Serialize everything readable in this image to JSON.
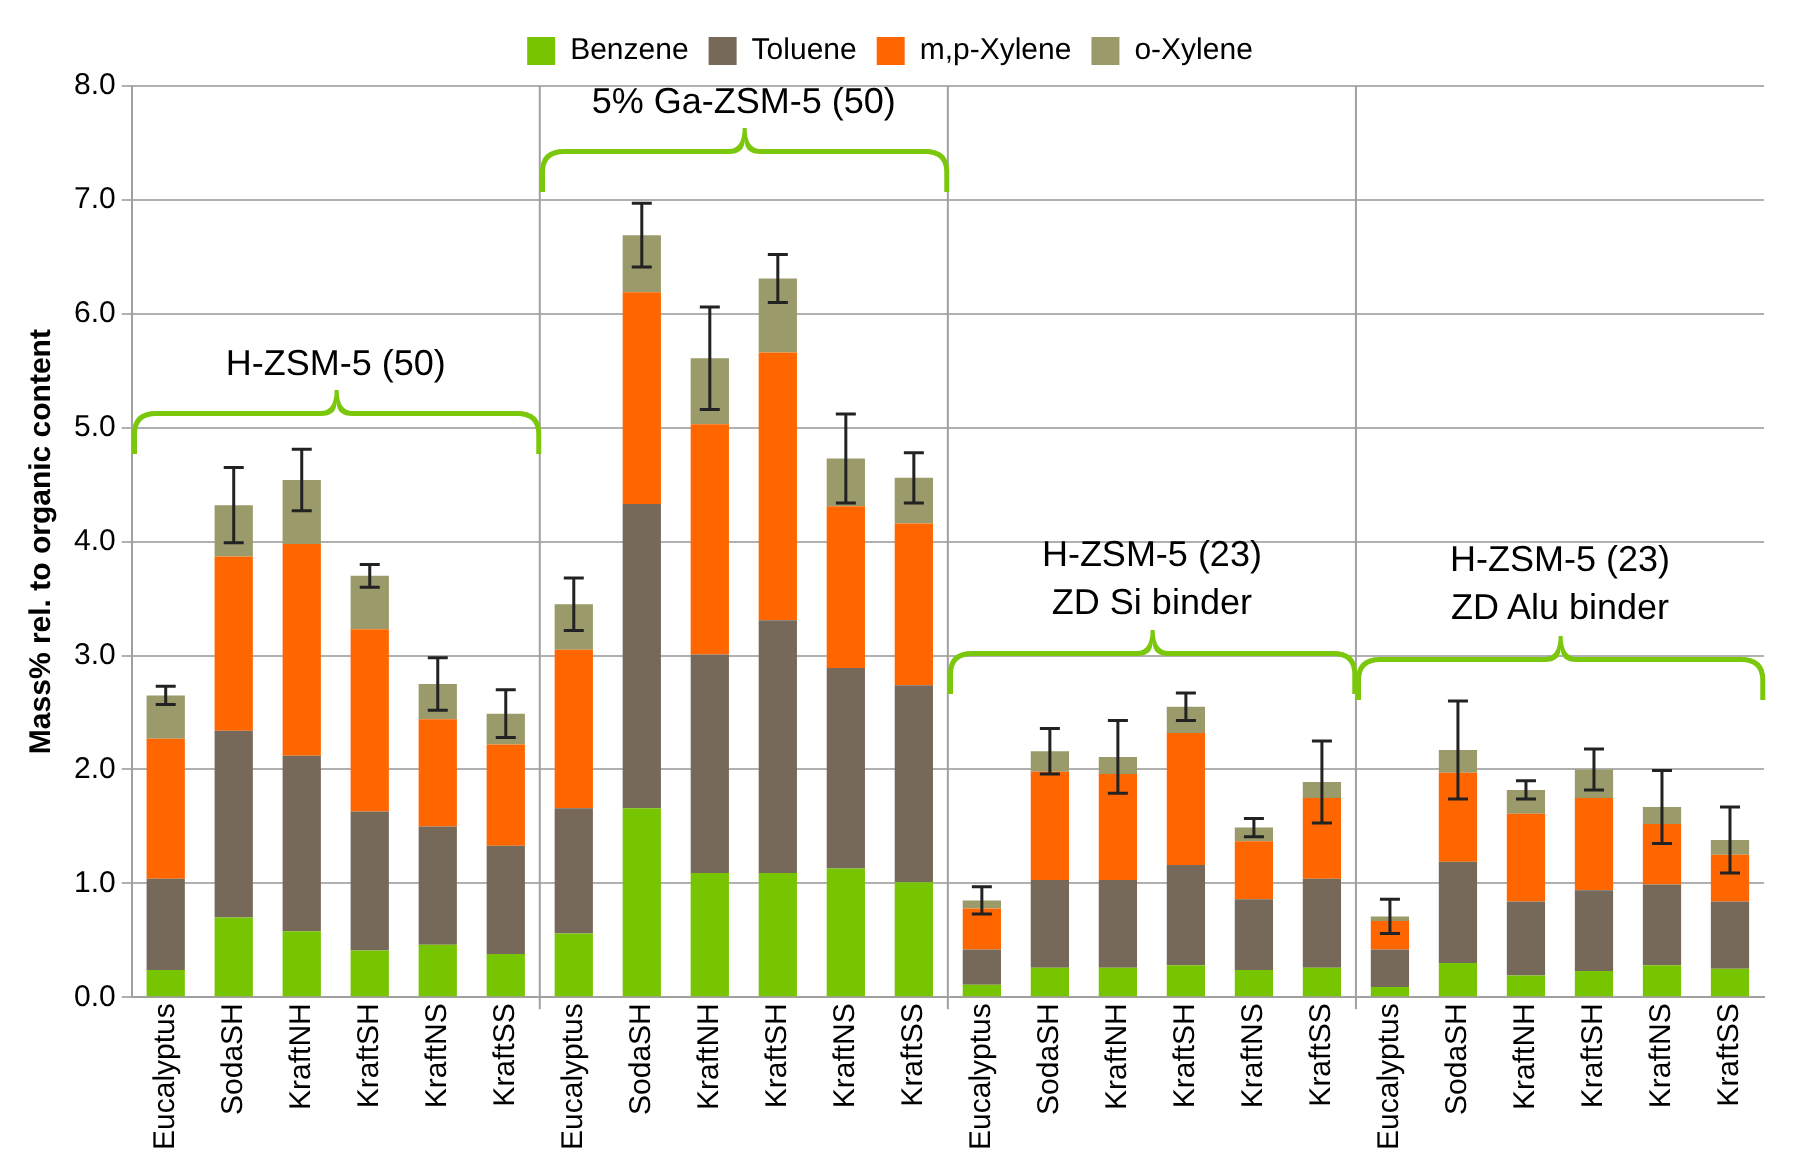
{
  "chart_data": {
    "type": "bar",
    "stacked": true,
    "ylabel": "Mass% rel. to organic content",
    "categories": [
      "Eucalyptus",
      "SodaSH",
      "KraftNH",
      "KraftSH",
      "KraftNS",
      "KraftSS",
      "Eucalyptus",
      "SodaSH",
      "KraftNH",
      "KraftSH",
      "KraftNS",
      "KraftSS",
      "Eucalyptus",
      "SodaSH",
      "KraftNH",
      "KraftSH",
      "KraftNS",
      "KraftSS",
      "Eucalyptus",
      "SodaSH",
      "KraftNH",
      "KraftSH",
      "KraftNS",
      "KraftSS"
    ],
    "series": [
      {
        "name": "Benzene",
        "color": "#77c500",
        "values": [
          0.24,
          0.7,
          0.58,
          0.41,
          0.46,
          0.38,
          0.56,
          1.66,
          1.09,
          1.09,
          1.13,
          1.01,
          0.11,
          0.26,
          0.26,
          0.28,
          0.24,
          0.26,
          0.09,
          0.3,
          0.19,
          0.23,
          0.28,
          0.25
        ]
      },
      {
        "name": "Toluene",
        "color": "#76695a",
        "values": [
          0.8,
          1.64,
          1.54,
          1.22,
          1.04,
          0.95,
          1.1,
          2.67,
          1.92,
          2.22,
          1.76,
          1.73,
          0.31,
          0.77,
          0.77,
          0.88,
          0.62,
          0.78,
          0.33,
          0.89,
          0.65,
          0.71,
          0.71,
          0.59
        ]
      },
      {
        "name": "m,p-Xylene",
        "color": "#ff6600",
        "values": [
          1.23,
          1.53,
          1.86,
          1.6,
          0.94,
          0.89,
          1.39,
          1.86,
          2.02,
          2.35,
          1.42,
          1.42,
          0.36,
          0.95,
          0.93,
          1.16,
          0.51,
          0.71,
          0.25,
          0.78,
          0.77,
          0.81,
          0.53,
          0.41
        ]
      },
      {
        "name": "o-Xylene",
        "color": "#9a9a6a",
        "values": [
          0.38,
          0.45,
          0.56,
          0.47,
          0.31,
          0.27,
          0.4,
          0.5,
          0.58,
          0.65,
          0.42,
          0.4,
          0.07,
          0.18,
          0.15,
          0.23,
          0.12,
          0.14,
          0.04,
          0.2,
          0.21,
          0.25,
          0.15,
          0.13
        ],
        "errors": [
          0.08,
          0.33,
          0.27,
          0.1,
          0.23,
          0.21,
          0.23,
          0.28,
          0.45,
          0.21,
          0.39,
          0.22,
          0.12,
          0.2,
          0.32,
          0.12,
          0.08,
          0.36,
          0.15,
          0.43,
          0.08,
          0.18,
          0.32,
          0.29
        ]
      }
    ],
    "ylim": [
      0,
      8
    ],
    "yticks": [
      {
        "value": 0,
        "label": "0.0"
      },
      {
        "value": 1,
        "label": "1.0"
      },
      {
        "value": 2,
        "label": "2.0"
      },
      {
        "value": 3,
        "label": "3.0"
      },
      {
        "value": 4,
        "label": "4.0"
      },
      {
        "value": 5,
        "label": "5.0"
      },
      {
        "value": 6,
        "label": "6.0"
      },
      {
        "value": 7,
        "label": "7.0"
      },
      {
        "value": 8,
        "label": "8.0"
      }
    ],
    "grid": "y",
    "legend": "top",
    "annotations": [
      "H-ZSM-5 (50)",
      "5% Ga-ZSM-5 (50)",
      "H-ZSM-5 (23)\nZD Si binder",
      "H-ZSM-5 (23)\nZD Alu binder"
    ]
  }
}
